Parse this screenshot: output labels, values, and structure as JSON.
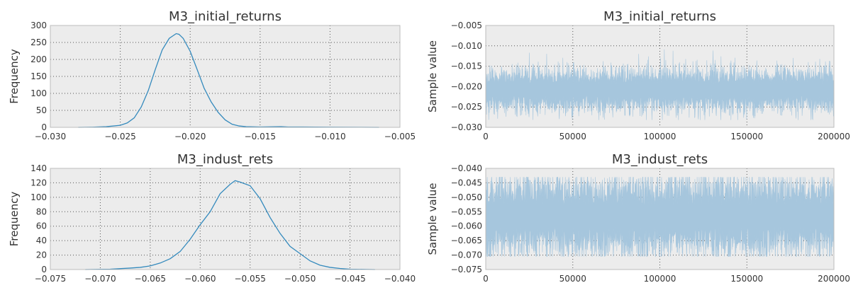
{
  "chart_data": [
    {
      "type": "line",
      "title": "M3_initial_returns",
      "xlabel": "",
      "ylabel": "Frequency",
      "xlim": [
        -0.03,
        -0.005
      ],
      "ylim": [
        0,
        300
      ],
      "x_ticks": [
        "−0.030",
        "−0.025",
        "−0.020",
        "−0.015",
        "−0.010",
        "−0.005"
      ],
      "y_ticks": [
        "0",
        "50",
        "100",
        "150",
        "200",
        "250",
        "300"
      ],
      "grid": true,
      "series": [
        {
          "values_x": [
            -0.028,
            -0.027,
            -0.026,
            -0.025,
            -0.0245,
            -0.024,
            -0.0235,
            -0.023,
            -0.0225,
            -0.022,
            -0.0215,
            -0.021,
            -0.0208,
            -0.0205,
            -0.02,
            -0.0195,
            -0.019,
            -0.0185,
            -0.018,
            -0.0175,
            -0.017,
            -0.0165,
            -0.016,
            -0.015,
            -0.0135,
            -0.013,
            -0.012,
            -0.01,
            -0.008,
            -0.0065
          ],
          "values_y": [
            0,
            0.5,
            2,
            6,
            13,
            28,
            60,
            108,
            170,
            228,
            262,
            276,
            274,
            262,
            224,
            170,
            115,
            75,
            44,
            22,
            9,
            4,
            2,
            1,
            2,
            1,
            1,
            0.5,
            0.3,
            0
          ]
        }
      ]
    },
    {
      "type": "line",
      "title": "M3_initial_returns",
      "xlabel": "",
      "ylabel": "Sample value",
      "xlim": [
        0,
        200000
      ],
      "ylim": [
        -0.03,
        -0.005
      ],
      "x_ticks": [
        "0",
        "50000",
        "100000",
        "150000",
        "200000"
      ],
      "y_ticks": [
        "−0.030",
        "−0.025",
        "−0.020",
        "−0.015",
        "−0.010",
        "−0.005"
      ],
      "grid": true,
      "series": [
        {
          "trace_center": -0.0208,
          "band_low": -0.0245,
          "band_high": -0.0172,
          "min": -0.0282,
          "max": -0.009,
          "n_samples": 200000
        }
      ]
    },
    {
      "type": "line",
      "title": "M3_indust_rets",
      "xlabel": "",
      "ylabel": "Frequency",
      "xlim": [
        -0.075,
        -0.04
      ],
      "ylim": [
        0,
        140
      ],
      "x_ticks": [
        "−0.075",
        "−0.070",
        "−0.065",
        "−0.060",
        "−0.055",
        "−0.050",
        "−0.045",
        "−0.040"
      ],
      "y_ticks": [
        "0",
        "20",
        "40",
        "60",
        "80",
        "100",
        "120",
        "140"
      ],
      "grid": true,
      "series": [
        {
          "values_x": [
            -0.0715,
            -0.069,
            -0.067,
            -0.066,
            -0.065,
            -0.064,
            -0.063,
            -0.062,
            -0.061,
            -0.06,
            -0.059,
            -0.058,
            -0.057,
            -0.0565,
            -0.056,
            -0.055,
            -0.054,
            -0.053,
            -0.052,
            -0.051,
            -0.05,
            -0.049,
            -0.048,
            -0.047,
            -0.046,
            -0.045,
            -0.0425
          ],
          "values_y": [
            0,
            0.5,
            2,
            3,
            5,
            9,
            15,
            25,
            42,
            62,
            80,
            105,
            118,
            123,
            121,
            116,
            98,
            72,
            50,
            32,
            22,
            12,
            6,
            3,
            1.5,
            0.5,
            0
          ]
        }
      ]
    },
    {
      "type": "line",
      "title": "M3_indust_rets",
      "xlabel": "",
      "ylabel": "Sample value",
      "xlim": [
        0,
        200000
      ],
      "ylim": [
        -0.075,
        -0.04
      ],
      "x_ticks": [
        "0",
        "50000",
        "100000",
        "150000",
        "200000"
      ],
      "y_ticks": [
        "−0.075",
        "−0.070",
        "−0.065",
        "−0.060",
        "−0.055",
        "−0.050",
        "−0.045",
        "−0.040"
      ],
      "grid": true,
      "series": [
        {
          "trace_center": -0.0565,
          "band_low": -0.066,
          "band_high": -0.047,
          "min": -0.0705,
          "max": -0.043,
          "n_samples": 200000
        }
      ]
    }
  ],
  "colors": {
    "background": "#ffffff",
    "plot_background": "#ececec",
    "frame": "#bcbcbc",
    "grid": "#555555",
    "kde_line": "#348abd",
    "trace_fill": "#a6c6dd",
    "text": "#333333"
  }
}
